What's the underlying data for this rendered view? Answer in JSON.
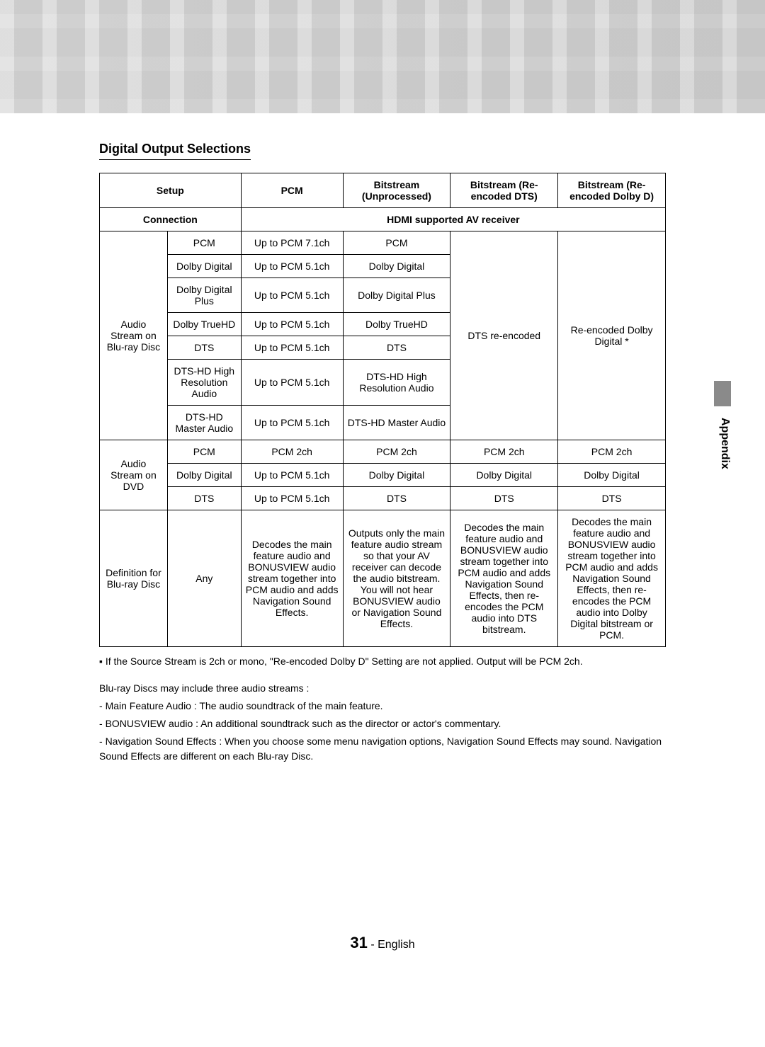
{
  "section_title": "Digital Output Selections",
  "side_tab": "Appendix",
  "page_number": "31",
  "page_lang": " - English",
  "headers": {
    "setup": "Setup",
    "pcm": "PCM",
    "bitstream_unproc": "Bitstream (Unprocessed)",
    "bitstream_dts": "Bitstream (Re-encoded DTS)",
    "bitstream_dolby": "Bitstream (Re-encoded Dolby D)",
    "connection": "Connection",
    "hdmi_receiver": "HDMI supported AV receiver"
  },
  "row_group_bluray": "Audio Stream on Blu-ray Disc",
  "row_group_dvd": "Audio Stream on DVD",
  "row_group_def": "Definition for Blu-ray Disc",
  "bluray_rows": [
    {
      "label": "PCM",
      "pcm": "Up to PCM 7.1ch",
      "unproc": "PCM"
    },
    {
      "label": "Dolby Digital",
      "pcm": "Up to PCM 5.1ch",
      "unproc": "Dolby Digital"
    },
    {
      "label": "Dolby Digital Plus",
      "pcm": "Up to PCM 5.1ch",
      "unproc": "Dolby Digital Plus"
    },
    {
      "label": "Dolby TrueHD",
      "pcm": "Up to PCM 5.1ch",
      "unproc": "Dolby TrueHD"
    },
    {
      "label": "DTS",
      "pcm": "Up to PCM 5.1ch",
      "unproc": "DTS"
    },
    {
      "label": "DTS-HD High Resolution Audio",
      "pcm": "Up to PCM 5.1ch",
      "unproc": "DTS-HD High Resolution Audio"
    },
    {
      "label": "DTS-HD Master Audio",
      "pcm": "Up to PCM 5.1ch",
      "unproc": "DTS-HD Master Audio"
    }
  ],
  "bluray_dts_merged": "DTS re-encoded",
  "bluray_dolby_merged": "Re-encoded Dolby Digital *",
  "dvd_rows": [
    {
      "label": "PCM",
      "pcm": "PCM 2ch",
      "unproc": "PCM 2ch",
      "dts": "PCM 2ch",
      "dolby": "PCM 2ch"
    },
    {
      "label": "Dolby Digital",
      "pcm": "Up to PCM 5.1ch",
      "unproc": "Dolby Digital",
      "dts": "Dolby Digital",
      "dolby": "Dolby Digital"
    },
    {
      "label": "DTS",
      "pcm": "Up to PCM 5.1ch",
      "unproc": "DTS",
      "dts": "DTS",
      "dolby": "DTS"
    }
  ],
  "def_row": {
    "label": "Any",
    "pcm": "Decodes the main feature audio and BONUSVIEW audio stream together into PCM audio and adds Navigation Sound Effects.",
    "unproc": "Outputs only the main feature audio stream so that your AV receiver can decode the audio bitstream.\nYou will not hear BONUSVIEW audio or Navigation Sound Effects.",
    "dts": "Decodes the main feature audio and BONUSVIEW audio stream together into PCM audio and adds Navigation Sound Effects, then re-encodes the PCM audio into DTS bitstream.",
    "dolby": "Decodes the main feature audio and BONUSVIEW audio stream together into PCM audio and adds Navigation Sound Effects, then re-encodes the PCM audio into Dolby Digital bitstream or PCM."
  },
  "footnote": "If the Source Stream is 2ch or mono, \"Re-encoded Dolby D\" Setting are not applied. Output will be PCM 2ch.",
  "desc_intro": "Blu-ray Discs may include three audio streams :",
  "desc_items": [
    "Main Feature Audio : The audio soundtrack of the main feature.",
    "BONUSVIEW audio : An additional soundtrack such as the director or actor's commentary.",
    "Navigation Sound Effects : When you choose some menu navigation options, Navigation Sound Effects may sound. Navigation Sound Effects are different on each Blu-ray Disc."
  ]
}
